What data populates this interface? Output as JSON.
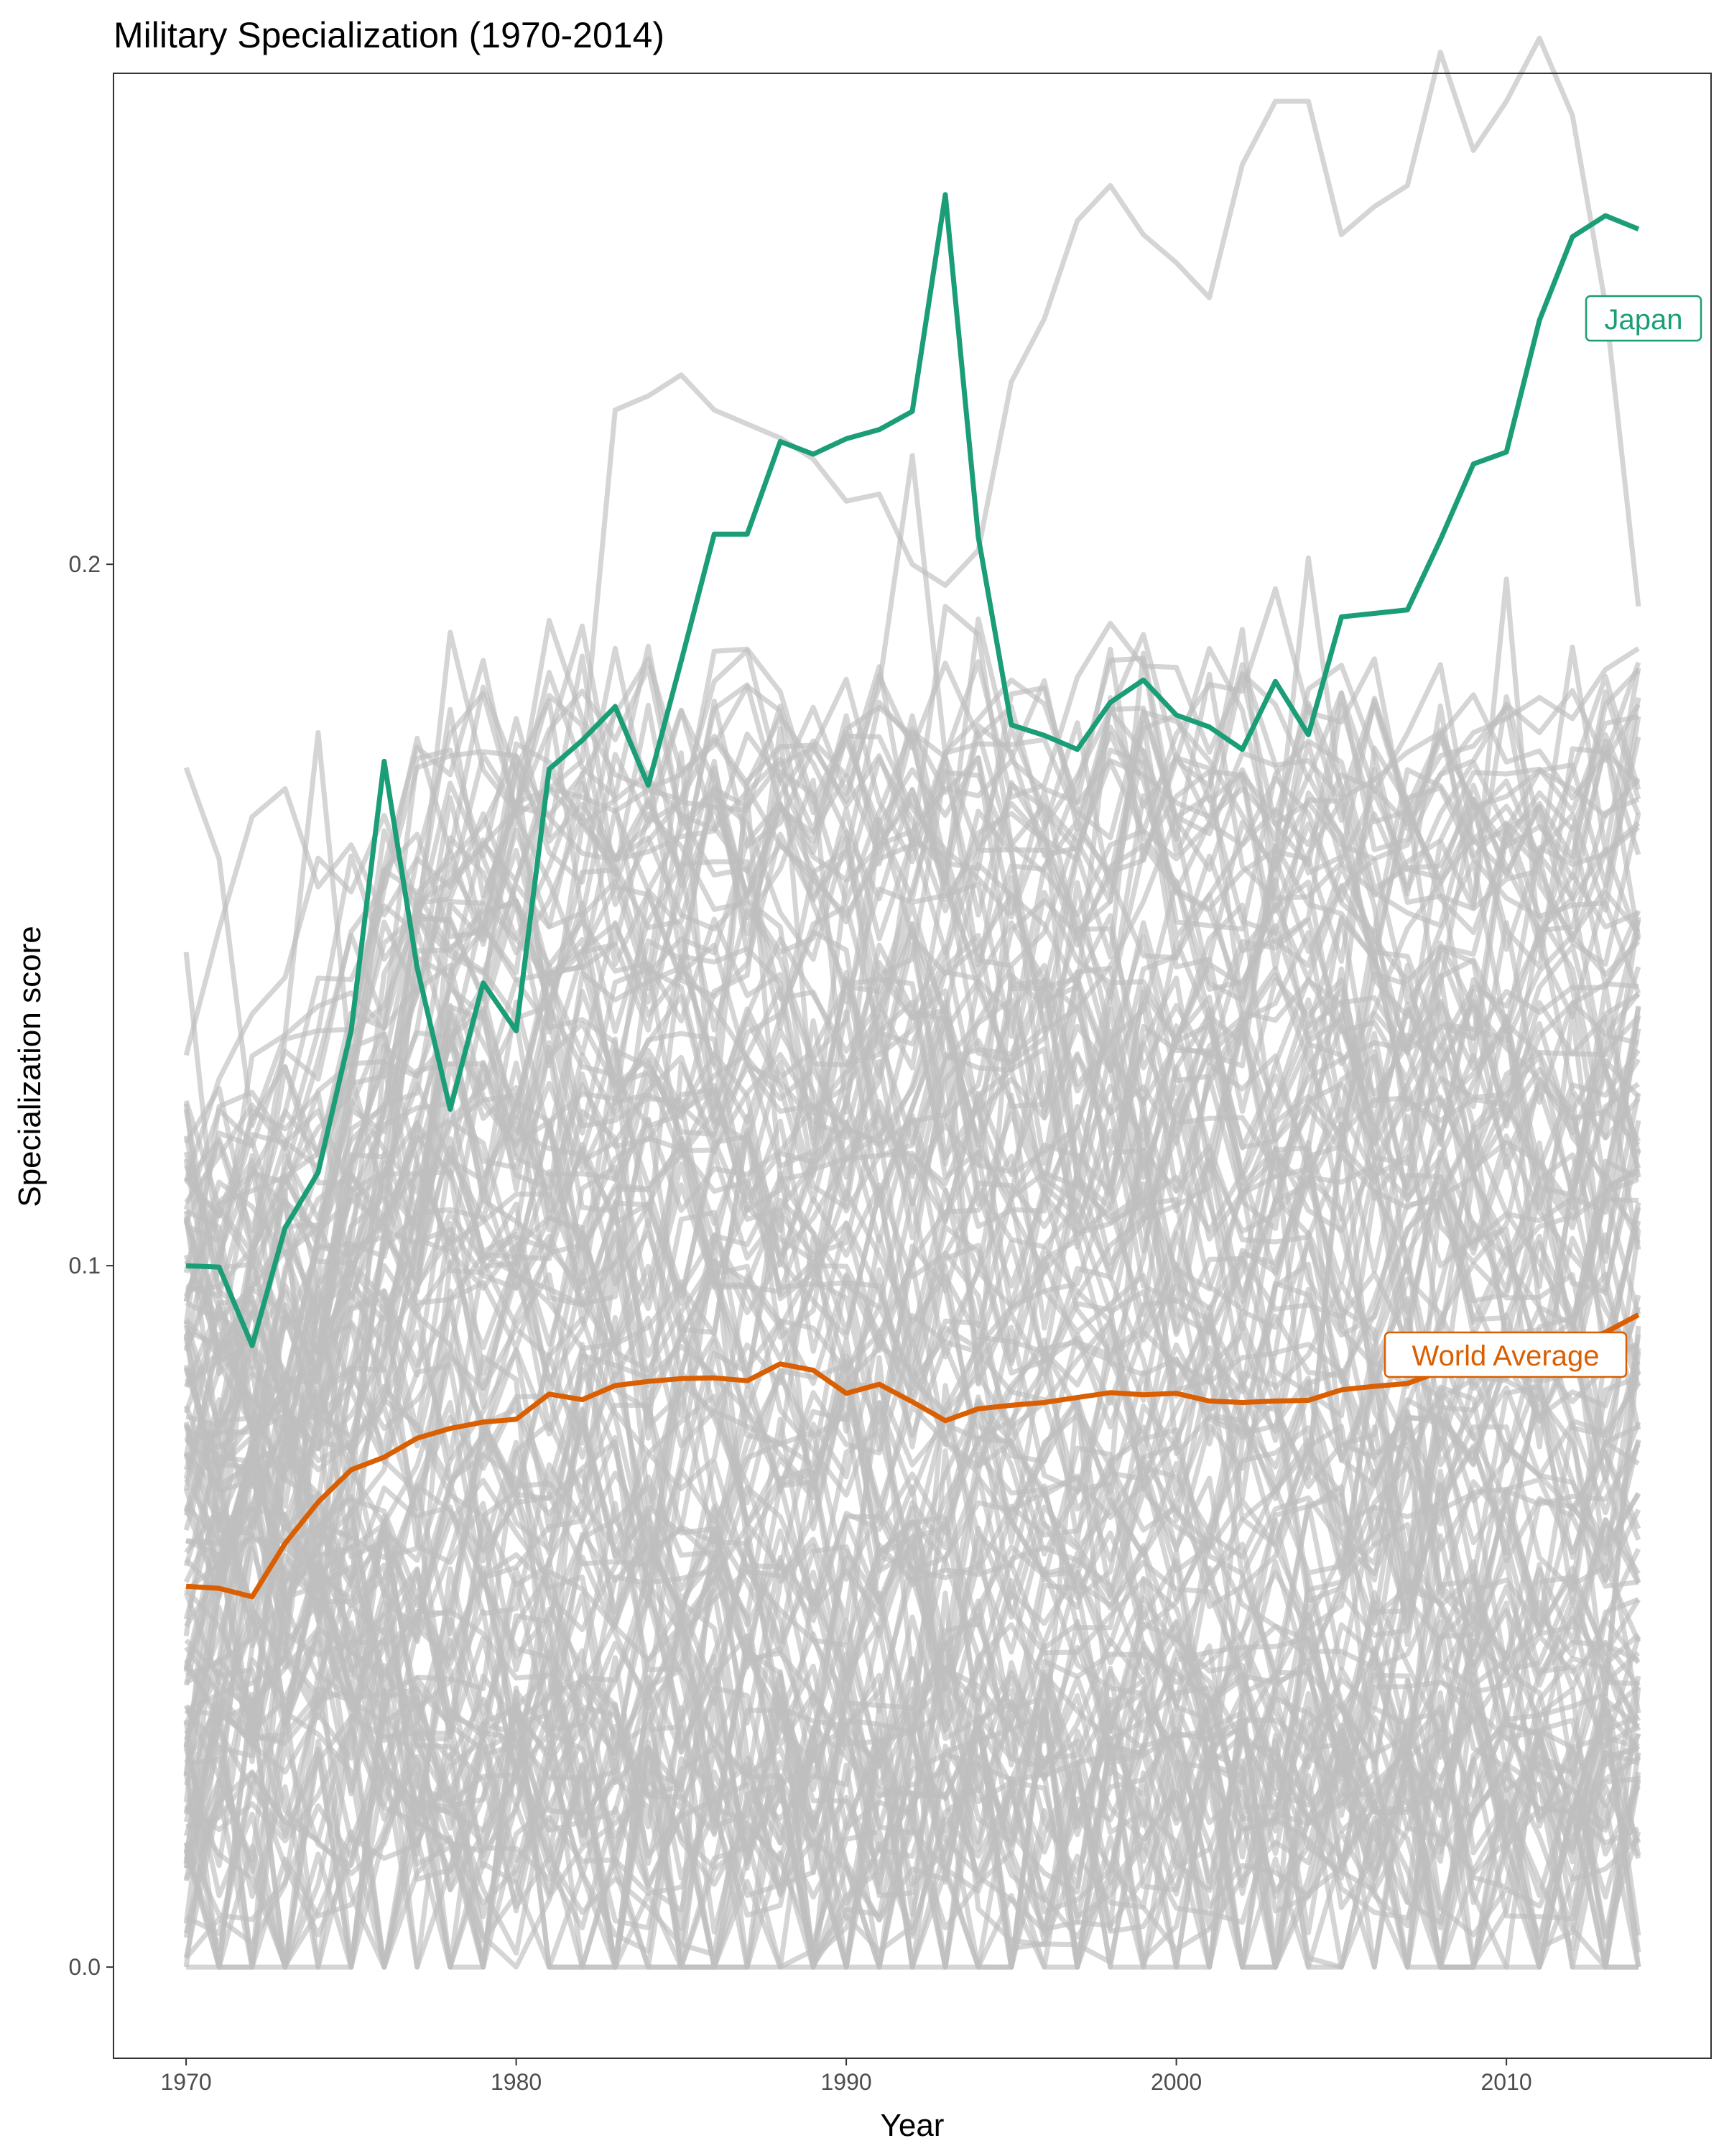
{
  "chart_data": {
    "type": "line",
    "title": "Military Specialization (1970-2014)",
    "xlabel": "Year",
    "ylabel": "Specialization score",
    "xlim": [
      1967.8,
      2016.2
    ],
    "ylim": [
      -0.013,
      0.27
    ],
    "x_ticks": [
      1970,
      1980,
      1990,
      2000,
      2010
    ],
    "y_ticks": [
      0.0,
      0.1,
      0.2
    ],
    "y_tick_labels": [
      "0.0",
      "0.1",
      "0.2"
    ],
    "grid": false,
    "legend": "none",
    "colors": {
      "background_series": "#bebebe",
      "japan": "#1b9e77",
      "world_average": "#d95f02",
      "axis_text": "#4d4d4d"
    },
    "highlighted_series": [
      {
        "name": "Japan",
        "color": "#1b9e77",
        "x": [
          1970,
          1971,
          1972,
          1973,
          1974,
          1975,
          1976,
          1977,
          1978,
          1979,
          1980,
          1981,
          1982,
          1983,
          1984,
          1985,
          1986,
          1987,
          1988,
          1989,
          1990,
          1991,
          1992,
          1993,
          1994,
          1995,
          1996,
          1997,
          1998,
          1999,
          2000,
          2001,
          2002,
          2003,
          2004,
          2005,
          2006,
          2007,
          2008,
          2009,
          2010,
          2011,
          2012,
          2013,
          2014
        ],
        "y": [
          0.1,
          0.0998,
          0.0886,
          0.1054,
          0.1133,
          0.1335,
          0.1719,
          0.1425,
          0.1223,
          0.1403,
          0.1335,
          0.1708,
          0.1749,
          0.1797,
          0.1685,
          0.1862,
          0.2043,
          0.2043,
          0.2175,
          0.2157,
          0.2179,
          0.2192,
          0.2218,
          0.2527,
          0.2039,
          0.1771,
          0.1756,
          0.1736,
          0.1803,
          0.1835,
          0.1785,
          0.1768,
          0.1736,
          0.1833,
          0.1757,
          0.1925,
          0.193,
          0.1935,
          0.2035,
          0.2143,
          0.216,
          0.2348,
          0.2467,
          0.2497,
          0.2478
        ]
      },
      {
        "name": "World Average",
        "color": "#d95f02",
        "x": [
          1970,
          1971,
          1972,
          1973,
          1974,
          1975,
          1976,
          1977,
          1978,
          1979,
          1980,
          1981,
          1982,
          1983,
          1984,
          1985,
          1986,
          1987,
          1988,
          1989,
          1990,
          1991,
          1992,
          1993,
          1994,
          1995,
          1996,
          1997,
          1998,
          1999,
          2000,
          2001,
          2002,
          2003,
          2004,
          2005,
          2006,
          2007,
          2008,
          2009,
          2010,
          2011,
          2012,
          2013,
          2014
        ],
        "y": [
          0.0543,
          0.054,
          0.0528,
          0.0604,
          0.0663,
          0.0709,
          0.0727,
          0.0754,
          0.0768,
          0.0777,
          0.0781,
          0.0817,
          0.0809,
          0.0829,
          0.0835,
          0.0839,
          0.084,
          0.0836,
          0.086,
          0.0851,
          0.0818,
          0.0831,
          0.0806,
          0.0779,
          0.0796,
          0.0801,
          0.0805,
          0.0812,
          0.0819,
          0.0816,
          0.0818,
          0.0807,
          0.0805,
          0.0807,
          0.0808,
          0.0823,
          0.0828,
          0.0832,
          0.0849,
          0.0851,
          0.0853,
          0.0852,
          0.0888,
          0.0905,
          0.093
        ]
      }
    ],
    "background_series": [
      {
        "x": [
          1970,
          1971,
          1972,
          1973,
          1974,
          1975,
          1976,
          1977,
          1978,
          1979,
          1980,
          1981,
          1982,
          1983,
          1984,
          1985,
          1986,
          1987,
          1988,
          1989,
          1990,
          1991,
          1992,
          1993,
          1994,
          1995,
          1996,
          1997,
          1998,
          1999,
          2000,
          2001,
          2002,
          2003,
          2004,
          2005,
          2006,
          2007,
          2008,
          2009,
          2010,
          2011,
          2012,
          2013,
          2014
        ],
        "y": [
          0.112,
          0.118,
          0.105,
          0.122,
          0.116,
          0.128,
          0.146,
          0.15,
          0.14,
          0.152,
          0.166,
          0.168,
          0.172,
          0.222,
          0.224,
          0.227,
          0.222,
          0.22,
          0.218,
          0.215,
          0.209,
          0.21,
          0.2,
          0.197,
          0.202,
          0.226,
          0.235,
          0.249,
          0.254,
          0.247,
          0.243,
          0.238,
          0.257,
          0.266,
          0.266,
          0.247,
          0.251,
          0.254,
          0.273,
          0.259,
          0.266,
          0.275,
          0.264,
          0.237,
          0.194
        ]
      },
      {
        "x": [
          1970,
          1971,
          1972,
          1973,
          1974,
          1975,
          1976,
          1977,
          1978,
          1979,
          1980,
          1981,
          1982,
          1983,
          1984,
          1985,
          1986,
          1987,
          1988,
          1989,
          1990,
          1991,
          1992,
          1993,
          1994,
          1995,
          1996,
          1997,
          1998,
          1999,
          2000,
          2001,
          2002,
          2003,
          2004,
          2005,
          2006,
          2007,
          2008,
          2009,
          2010,
          2011,
          2012,
          2013,
          2014
        ],
        "y": [
          0.171,
          0.158,
          0.12,
          0.133,
          0.176,
          0.128,
          0.162,
          0.15,
          0.149,
          0.138,
          0.155,
          0.168,
          0.163,
          0.158,
          0.161,
          0.15,
          0.148,
          0.153,
          0.16,
          0.156,
          0.149,
          0.16,
          0.162,
          0.168,
          0.167,
          0.172,
          0.168,
          0.166,
          0.172,
          0.17,
          0.166,
          0.164,
          0.168,
          0.163,
          0.166,
          0.16,
          0.158,
          0.16,
          0.17,
          0.176,
          0.178,
          0.181,
          0.178,
          0.185,
          0.188
        ]
      },
      {
        "x": [
          1970,
          1971,
          1972,
          1973,
          1974,
          1975,
          1976,
          1977,
          1978,
          1979,
          1980,
          1981,
          1982,
          1983,
          1984,
          1985,
          1986,
          1987,
          1988,
          1989,
          1990,
          1991,
          1992,
          1993,
          1994,
          1995,
          1996,
          1997,
          1998,
          1999,
          2000,
          2001,
          2002,
          2003,
          2004,
          2005,
          2006,
          2007,
          2008,
          2009,
          2010,
          2011,
          2012,
          2013,
          2014
        ],
        "y": [
          0.13,
          0.148,
          0.164,
          0.168,
          0.154,
          0.16,
          0.15,
          0.158,
          0.154,
          0.16,
          0.165,
          0.192,
          0.178,
          0.17,
          0.168,
          0.17,
          0.175,
          0.168,
          0.16,
          0.155,
          0.15,
          0.158,
          0.16,
          0.194,
          0.19,
          0.16,
          0.156,
          0.15,
          0.16,
          0.162,
          0.158,
          0.163,
          0.16,
          0.165,
          0.16,
          0.17,
          0.168,
          0.163,
          0.17,
          0.172,
          0.18,
          0.176,
          0.182,
          0.172,
          0.18
        ]
      }
    ]
  },
  "labels": {
    "japan": "Japan",
    "world_average": "World Average"
  }
}
